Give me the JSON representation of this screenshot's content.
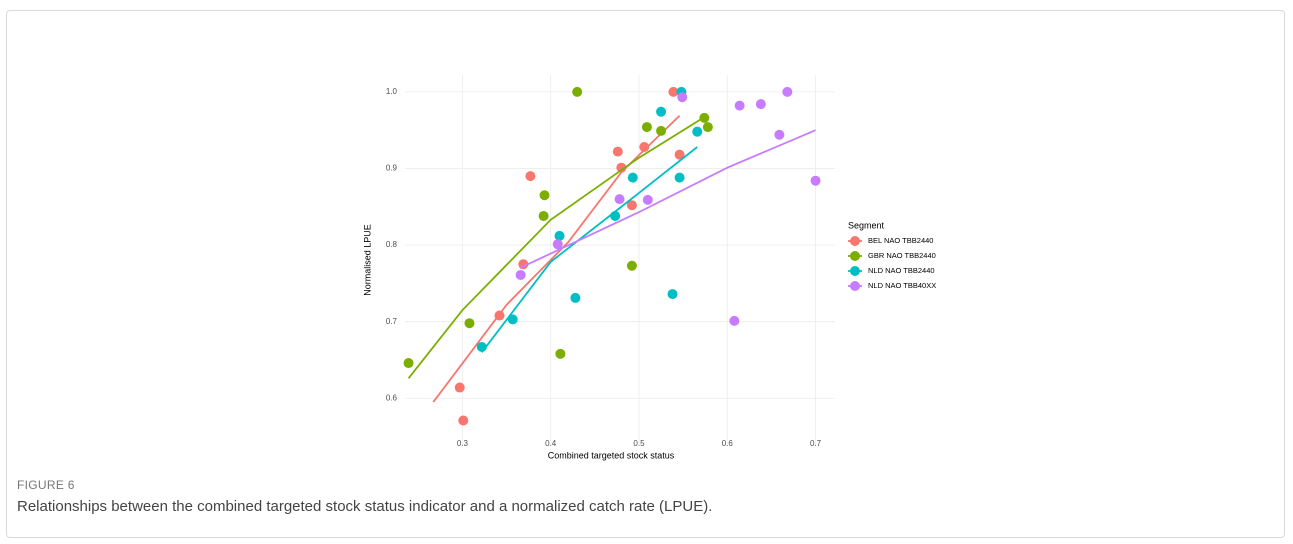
{
  "chart_data": {
    "type": "scatter",
    "xlabel": "Combined targeted stock status",
    "ylabel": "Normalised LPUE",
    "legend_title": "Segment",
    "legend": "right",
    "grid": true,
    "xlim": [
      0.235,
      0.722
    ],
    "ylim": [
      0.539,
      1.022
    ],
    "xticks": [
      0.3,
      0.4,
      0.5,
      0.6,
      0.7
    ],
    "yticks": [
      0.6,
      0.7,
      0.8,
      0.9,
      {
        "value": 1,
        "label": "1.0"
      }
    ],
    "series": [
      {
        "name": "BEL NAO TBB2440",
        "color": "#F8766D",
        "x": [
          0.539,
          0.476,
          0.506,
          0.48,
          0.546,
          0.377,
          0.492,
          0.369,
          0.342,
          0.297,
          0.301
        ],
        "values": [
          1.0,
          0.922,
          0.928,
          0.901,
          0.918,
          0.89,
          0.852,
          0.775,
          0.708,
          0.614,
          0.571
        ],
        "fit_x": [
          0.267,
          0.35,
          0.42,
          0.48,
          0.546
        ],
        "fit_y": [
          0.595,
          0.722,
          0.804,
          0.895,
          0.969
        ]
      },
      {
        "name": "GBR NAO TBB2440",
        "color": "#7CAE00",
        "x": [
          0.43,
          0.509,
          0.525,
          0.574,
          0.578,
          0.393,
          0.392,
          0.492,
          0.308,
          0.411,
          0.239
        ],
        "values": [
          1.0,
          0.954,
          0.949,
          0.966,
          0.954,
          0.865,
          0.838,
          0.773,
          0.698,
          0.658,
          0.646
        ],
        "fit_x": [
          0.239,
          0.3,
          0.4,
          0.5,
          0.574
        ],
        "fit_y": [
          0.626,
          0.715,
          0.833,
          0.914,
          0.967
        ]
      },
      {
        "name": "NLD NAO TBB2440",
        "color": "#00BFC4",
        "x": [
          0.548,
          0.525,
          0.566,
          0.493,
          0.546,
          0.473,
          0.41,
          0.357,
          0.428,
          0.538,
          0.322
        ],
        "values": [
          1.0,
          0.974,
          0.948,
          0.888,
          0.888,
          0.838,
          0.812,
          0.703,
          0.731,
          0.736,
          0.667
        ],
        "fit_x": [
          0.322,
          0.4,
          0.5,
          0.566
        ],
        "fit_y": [
          0.66,
          0.778,
          0.868,
          0.928
        ]
      },
      {
        "name": "NLD NAO TBB40XX",
        "color": "#C77CFF",
        "x": [
          0.549,
          0.668,
          0.614,
          0.638,
          0.659,
          0.7,
          0.478,
          0.51,
          0.408,
          0.366,
          0.608
        ],
        "values": [
          0.993,
          1.0,
          0.982,
          0.984,
          0.944,
          0.884,
          0.86,
          0.859,
          0.801,
          0.761,
          0.701
        ],
        "fit_x": [
          0.365,
          0.5,
          0.6,
          0.7
        ],
        "fit_y": [
          0.77,
          0.843,
          0.901,
          0.95
        ]
      }
    ]
  },
  "figure": {
    "label": "FIGURE 6",
    "caption": "Relationships between the combined targeted stock status indicator and a normalized catch rate (LPUE)."
  }
}
